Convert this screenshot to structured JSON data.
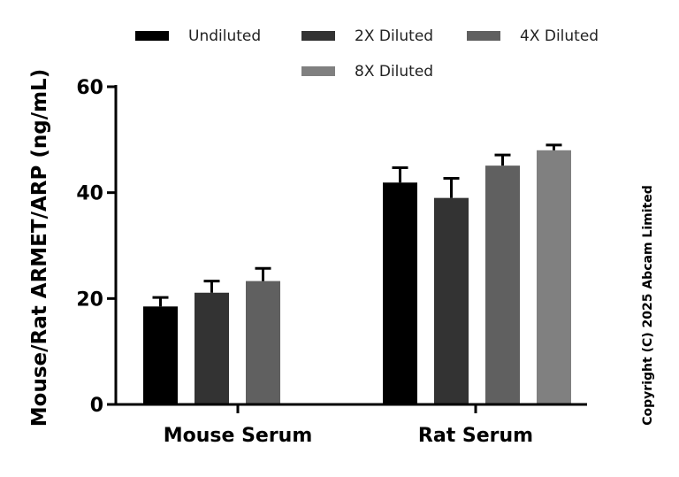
{
  "chart_data": {
    "type": "bar",
    "title": "",
    "xlabel": "",
    "ylabel": "Mouse/Rat ARMET/ARP (ng/mL)",
    "ylim": [
      0,
      60
    ],
    "yticks": [
      0,
      20,
      40,
      60
    ],
    "categories": [
      "Mouse Serum",
      "Rat Serum"
    ],
    "legend_position": "top",
    "series": [
      {
        "name": "Undiluted",
        "color": "#000000",
        "values": [
          18.5,
          41.9
        ],
        "error": [
          1.7,
          2.8
        ]
      },
      {
        "name": "2X Diluted",
        "color": "#333333",
        "values": [
          21.1,
          39.0
        ],
        "error": [
          2.2,
          3.7
        ]
      },
      {
        "name": "4X Diluted",
        "color": "#606060",
        "values": [
          23.3,
          45.1
        ],
        "error": [
          2.4,
          2.0
        ]
      },
      {
        "name": "8X Diluted",
        "color": "#808080",
        "values": [
          null,
          48.0
        ],
        "error": [
          null,
          1.0
        ]
      }
    ]
  },
  "copyright": "Copyright (C) 2025 Abcam Limited"
}
